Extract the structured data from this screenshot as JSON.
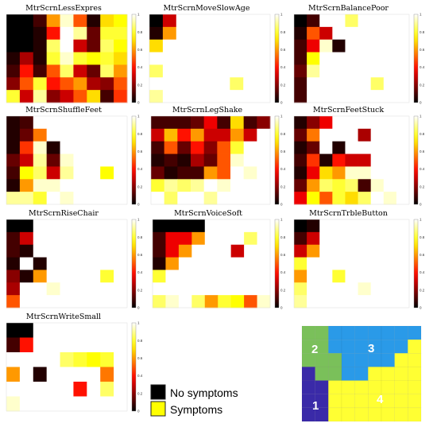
{
  "chart_data": [
    {
      "type": "heatmap",
      "title": "MtrScrnLessExpres",
      "colorbar_ticks": [
        "1",
        "0.8",
        "0.6",
        "0.4",
        "0.2",
        "0"
      ],
      "values": [
        [
          0,
          0,
          0.1,
          0.6,
          0.95,
          0.5,
          0.05,
          0.7,
          0.75
        ],
        [
          0,
          0,
          0.05,
          0.4,
          1,
          0.9,
          0.15,
          0.8,
          0.8
        ],
        [
          0,
          0,
          0.05,
          0.85,
          1,
          0.3,
          0.15,
          0.85,
          0.75
        ],
        [
          0.05,
          0.25,
          0.05,
          0.8,
          0.95,
          0.8,
          0.75,
          0.8,
          0.7
        ],
        [
          0.1,
          0.4,
          0.1,
          0.5,
          0.85,
          0.3,
          0.15,
          0.85,
          0.6
        ],
        [
          0.2,
          0.5,
          0.8,
          0.4,
          0.5,
          0.6,
          0.25,
          0.2,
          0.5
        ],
        [
          0.8,
          0.3,
          0.9,
          0.2,
          0.3,
          0.5,
          0.7,
          0.1,
          0.45
        ]
      ]
    },
    {
      "type": "heatmap",
      "title": "MtrScrnMoveSlowAge",
      "colorbar_ticks": [
        "1",
        "0.8",
        "0.6",
        "0.4",
        "0.2",
        "0"
      ],
      "values": [
        [
          0,
          0.3,
          1,
          1,
          1,
          1,
          1,
          1,
          1
        ],
        [
          0.05,
          0.6,
          1,
          1,
          1,
          1,
          1,
          1,
          1
        ],
        [
          0.7,
          1,
          1,
          1,
          1,
          1,
          1,
          1,
          1
        ],
        [
          1,
          1,
          1,
          1,
          1,
          1,
          1,
          1,
          1
        ],
        [
          0.85,
          1,
          1,
          1,
          1,
          1,
          1,
          1,
          1
        ],
        [
          1,
          1,
          1,
          1,
          1,
          1,
          0.85,
          1,
          1
        ],
        [
          0.9,
          1,
          1,
          1,
          1,
          1,
          1,
          1,
          1
        ]
      ]
    },
    {
      "type": "heatmap",
      "title": "MtrScrnBalancePoor",
      "colorbar_ticks": [
        "1",
        "0.8",
        "0.6",
        "0.4",
        "0.2",
        "0"
      ],
      "values": [
        [
          0,
          0.1,
          1,
          1,
          0.85,
          1,
          1,
          1,
          1
        ],
        [
          0.05,
          0.5,
          0.3,
          1,
          1,
          1,
          1,
          1,
          1
        ],
        [
          0.1,
          0.35,
          0.95,
          0.05,
          1,
          1,
          1,
          1,
          1
        ],
        [
          0.1,
          0.75,
          1,
          1,
          1,
          1,
          1,
          1,
          1
        ],
        [
          0.15,
          0.9,
          1,
          1,
          1,
          1,
          1,
          1,
          1
        ],
        [
          0.1,
          1,
          1,
          1,
          1,
          1,
          0.85,
          1,
          1
        ],
        [
          0.1,
          1,
          1,
          1,
          1,
          1,
          1,
          1,
          1
        ]
      ]
    },
    {
      "type": "heatmap",
      "title": "MtrScrnShuffleFeet",
      "colorbar_ticks": [
        "1",
        "0.8",
        "0.6",
        "0.4",
        "0.2",
        "0"
      ],
      "values": [
        [
          0.05,
          0.1,
          1,
          1,
          1,
          1,
          1,
          1,
          1
        ],
        [
          0.05,
          0.15,
          0.55,
          1,
          1,
          1,
          1,
          1,
          1
        ],
        [
          0.05,
          0.45,
          0.95,
          0.05,
          1,
          1,
          1,
          1,
          1
        ],
        [
          0.15,
          0.3,
          0.9,
          0.15,
          0.95,
          1,
          1,
          1,
          1
        ],
        [
          0.1,
          0.75,
          0.85,
          0.3,
          0.9,
          1,
          1,
          0.75,
          1
        ],
        [
          0.05,
          0.6,
          0.95,
          0.95,
          1,
          1,
          1,
          1,
          1
        ],
        [
          0.9,
          0.9,
          0.8,
          1,
          0.95,
          1,
          1,
          1,
          1
        ]
      ]
    },
    {
      "type": "heatmap",
      "title": "MtrScrnLegShake",
      "colorbar_ticks": [
        "1",
        "0.8",
        "0.6",
        "0.4",
        "0.2",
        "0"
      ],
      "values": [
        [
          0.1,
          0.1,
          0.1,
          0.15,
          0.35,
          0.1,
          0.7,
          0.1,
          0.2
        ],
        [
          0.3,
          0.65,
          0.4,
          0.6,
          0.3,
          0.3,
          0.6,
          0.3,
          1
        ],
        [
          0.1,
          0.5,
          0.15,
          0.4,
          0.2,
          0.5,
          0.8,
          1,
          1
        ],
        [
          0.05,
          0.1,
          0.05,
          0.25,
          0.15,
          0.5,
          0.95,
          1,
          1
        ],
        [
          0.15,
          0.05,
          0.1,
          0.1,
          0.6,
          0.5,
          1,
          0.95,
          1
        ],
        [
          0.8,
          0.9,
          0.85,
          0.9,
          1,
          0.95,
          1,
          1,
          1
        ],
        [
          1,
          0.85,
          1,
          1,
          0.9,
          1,
          1,
          1,
          1
        ]
      ]
    },
    {
      "type": "heatmap",
      "title": "MtrScrnFeetStuck",
      "colorbar_ticks": [
        "1",
        "0.8",
        "0.6",
        "0.4",
        "0.2",
        "0"
      ],
      "values": [
        [
          0.05,
          0.2,
          0.35,
          1,
          1,
          1,
          1,
          1,
          1
        ],
        [
          0.15,
          0.55,
          1,
          1,
          1,
          0.25,
          1,
          1,
          1
        ],
        [
          0.05,
          0.15,
          1,
          0.05,
          1,
          1,
          1,
          1,
          1
        ],
        [
          0.1,
          0.45,
          0.05,
          0.4,
          0.3,
          0.3,
          1,
          1,
          1
        ],
        [
          0.05,
          0.35,
          0.7,
          0.6,
          0.95,
          0.95,
          1,
          1,
          1
        ],
        [
          0.15,
          0.6,
          0.85,
          0.8,
          0.85,
          0.1,
          0.95,
          1,
          1
        ],
        [
          0.35,
          0.75,
          0.5,
          0.8,
          0.7,
          0.85,
          1,
          0.95,
          1
        ]
      ]
    },
    {
      "type": "heatmap",
      "title": "MtrScrnRiseChair",
      "colorbar_ticks": [
        "1",
        "0.8",
        "0.6",
        "0.4",
        "0.2",
        "0"
      ],
      "values": [
        [
          0,
          0,
          1,
          1,
          1,
          1,
          1,
          1,
          1
        ],
        [
          0.1,
          0.3,
          1,
          1,
          1,
          1,
          1,
          1,
          1
        ],
        [
          0.1,
          0.05,
          1,
          1,
          1,
          1,
          1,
          1,
          1
        ],
        [
          0.05,
          1,
          0.05,
          1,
          1,
          1,
          1,
          1,
          1
        ],
        [
          0.2,
          0.05,
          0.6,
          1,
          1,
          1,
          1,
          0.8,
          1
        ],
        [
          0.25,
          1,
          1,
          0.95,
          1,
          1,
          1,
          1,
          1
        ],
        [
          0.5,
          1,
          1,
          1,
          1,
          1,
          1,
          1,
          1
        ]
      ]
    },
    {
      "type": "heatmap",
      "title": "MtrScrnVoiceSoft",
      "colorbar_ticks": [
        "1",
        "0.8",
        "0.6",
        "0.4",
        "0.2",
        "0"
      ],
      "values": [
        [
          0,
          0,
          0,
          0,
          1,
          1,
          1,
          1,
          1
        ],
        [
          0.1,
          0.35,
          0.35,
          0.6,
          1,
          1,
          1,
          0.85,
          1
        ],
        [
          0.1,
          0.35,
          0.6,
          1,
          1,
          1,
          0.3,
          1,
          1
        ],
        [
          0.05,
          0.6,
          1,
          1,
          1,
          1,
          1,
          1,
          1
        ],
        [
          0.8,
          1,
          1,
          1,
          1,
          1,
          1,
          1,
          1
        ],
        [
          1,
          1,
          1,
          1,
          1,
          1,
          1,
          1,
          1
        ],
        [
          0.85,
          0.95,
          1,
          0.85,
          0.6,
          0.8,
          0.75,
          0.5,
          0.95
        ]
      ]
    },
    {
      "type": "heatmap",
      "title": "MtrScrnTrbleButton",
      "colorbar_ticks": [
        "1",
        "0.8",
        "0.6",
        "0.4",
        "0.2",
        "0"
      ],
      "values": [
        [
          0,
          0.05,
          1,
          1,
          1,
          1,
          1,
          1,
          1
        ],
        [
          0.1,
          0.3,
          1,
          1,
          1,
          1,
          1,
          1,
          1
        ],
        [
          0.3,
          0.6,
          1,
          1,
          1,
          1,
          1,
          1,
          1
        ],
        [
          0.8,
          1,
          1,
          1,
          1,
          1,
          1,
          1,
          1
        ],
        [
          0.6,
          1,
          1,
          0.8,
          1,
          1,
          1,
          1,
          1
        ],
        [
          0.85,
          1,
          1,
          1,
          1,
          0.95,
          1,
          1,
          1
        ],
        [
          0.9,
          1,
          1,
          1,
          1,
          1,
          1,
          1,
          1
        ]
      ]
    },
    {
      "type": "heatmap",
      "title": "MtrScrnWriteSmall",
      "colorbar_ticks": [
        "1",
        "0.8",
        "0.6",
        "0.4",
        "0.2",
        "0"
      ],
      "values": [
        [
          0,
          0,
          1,
          1,
          1,
          1,
          1,
          1,
          1
        ],
        [
          0.1,
          0.4,
          1,
          1,
          1,
          1,
          1,
          1,
          1
        ],
        [
          1,
          1,
          1,
          1,
          0.85,
          0.8,
          0.75,
          0.8,
          1
        ],
        [
          0.6,
          1,
          0.05,
          1,
          1,
          1,
          1,
          0.55,
          1
        ],
        [
          1,
          1,
          1,
          1,
          1,
          0.4,
          1,
          0.85,
          1
        ],
        [
          0.95,
          1,
          1,
          1,
          1,
          1,
          1,
          1,
          1
        ]
      ]
    }
  ],
  "legend": {
    "items": [
      {
        "label": "No symptoms",
        "color": "#000000"
      },
      {
        "label": "Symptoms",
        "color": "#ffff00"
      }
    ]
  },
  "region_map": {
    "colors": {
      "1": "#3a2aa8",
      "2": "#7ac05a",
      "3": "#2a9ae8",
      "4": "#ffff33"
    },
    "grid": [
      [
        "2",
        "2",
        "3",
        "3",
        "3",
        "3",
        "3",
        "3",
        "3"
      ],
      [
        "2",
        "2",
        "3",
        "3",
        "3",
        "3",
        "3",
        "3",
        "4"
      ],
      [
        "2",
        "2",
        "2",
        "3",
        "3",
        "3",
        "3",
        "4",
        "4"
      ],
      [
        "1",
        "2",
        "2",
        "3",
        "3",
        "4",
        "4",
        "4",
        "4"
      ],
      [
        "1",
        "1",
        "4",
        "4",
        "4",
        "4",
        "4",
        "4",
        "4"
      ],
      [
        "1",
        "1",
        "4",
        "4",
        "4",
        "4",
        "4",
        "4",
        "4"
      ],
      [
        "1",
        "1",
        "4",
        "4",
        "4",
        "4",
        "4",
        "4",
        "4"
      ]
    ],
    "labels": [
      "1",
      "2",
      "3",
      "4"
    ]
  }
}
